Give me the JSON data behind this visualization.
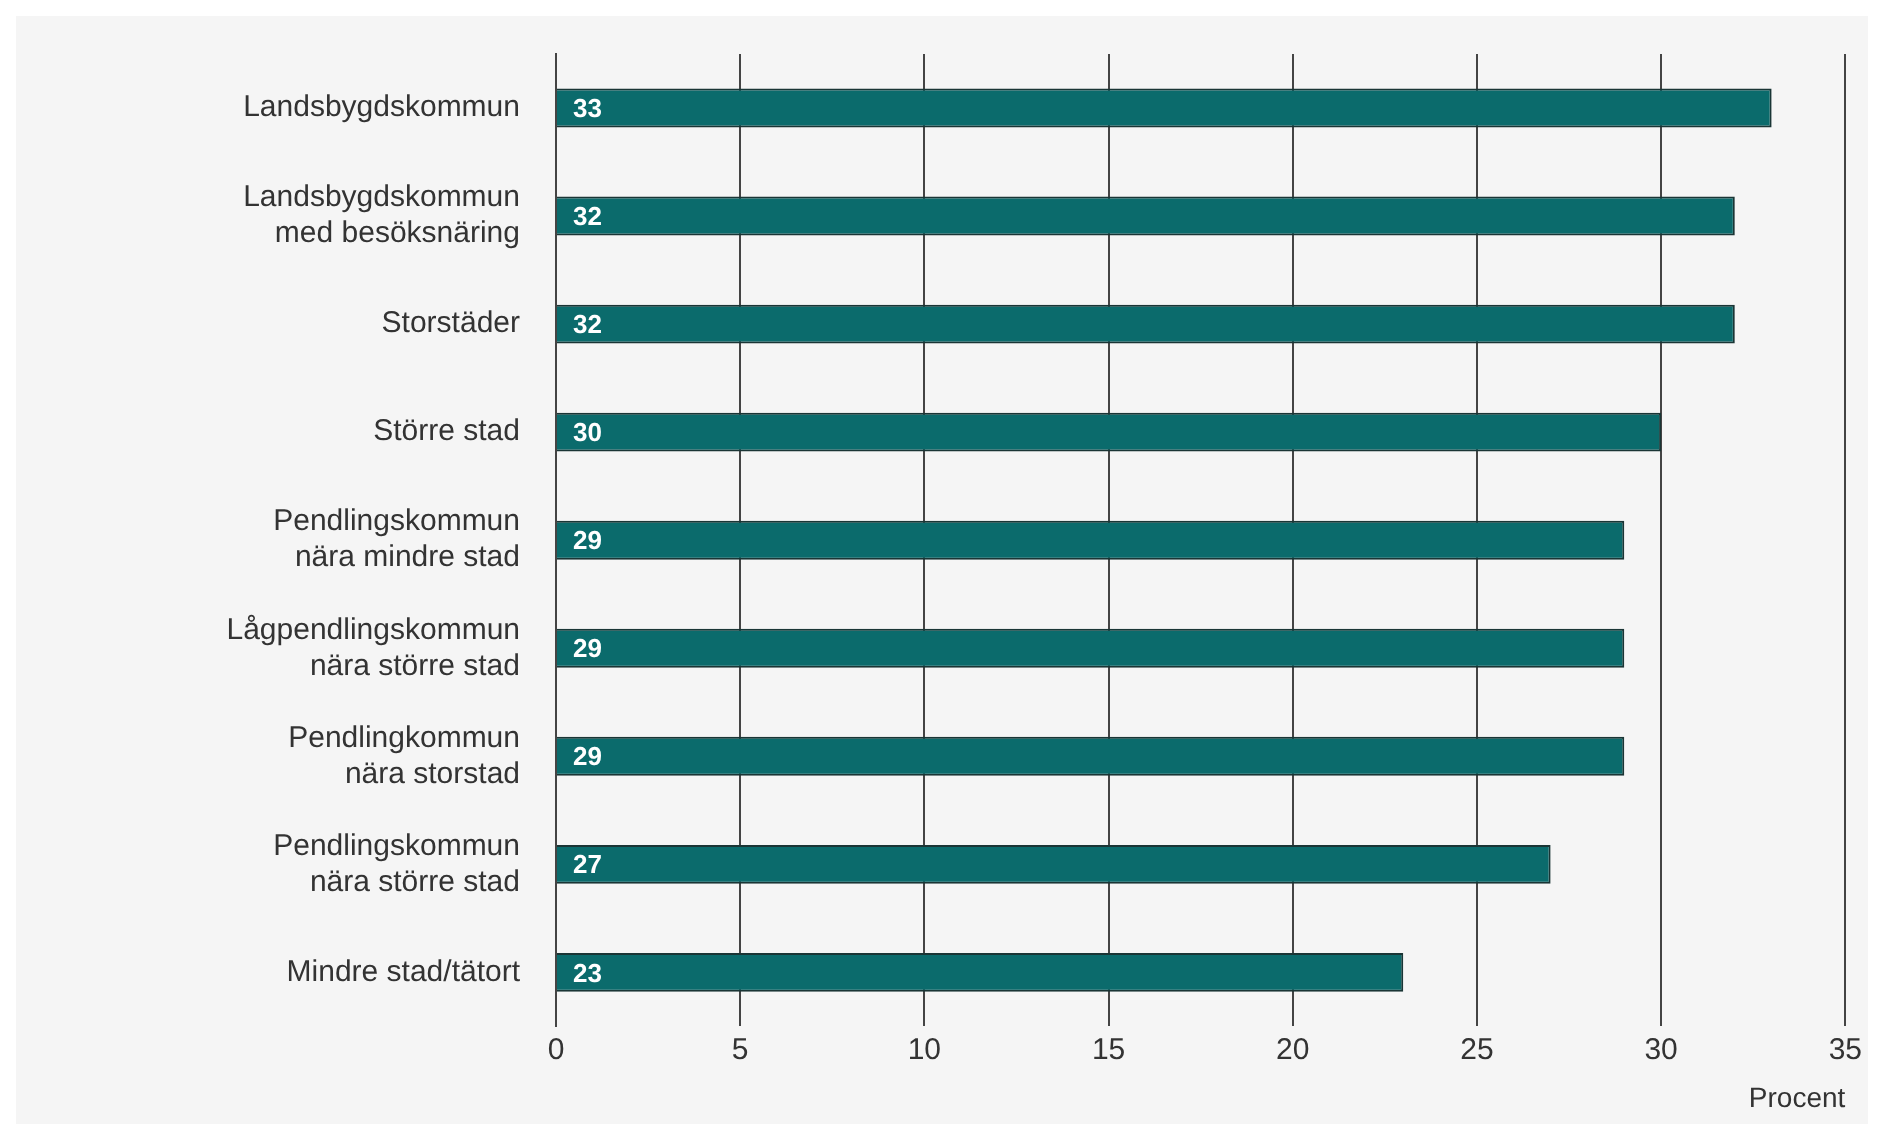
{
  "chart_data": {
    "type": "bar",
    "orientation": "horizontal",
    "xlabel": "Procent",
    "categories": [
      "Landsbygdskommun",
      "Landsbygdskommun\nmed besöksnäring",
      "Storstäder",
      "Större stad",
      "Pendlingskommun\nnära mindre stad",
      "Lågpendlingskommun\nnära större stad",
      "Pendlingkommun\nnära storstad",
      "Pendlingskommun\nnära större stad",
      "Mindre stad/tätort"
    ],
    "values": [
      33,
      32,
      32,
      30,
      29,
      29,
      29,
      27,
      23
    ],
    "color": "#0b6b6c",
    "xlim": [
      0,
      35
    ],
    "xticks": [
      0,
      5,
      10,
      15,
      20,
      25,
      30,
      35
    ],
    "grid": "x",
    "legend": false,
    "data_labels": true
  }
}
